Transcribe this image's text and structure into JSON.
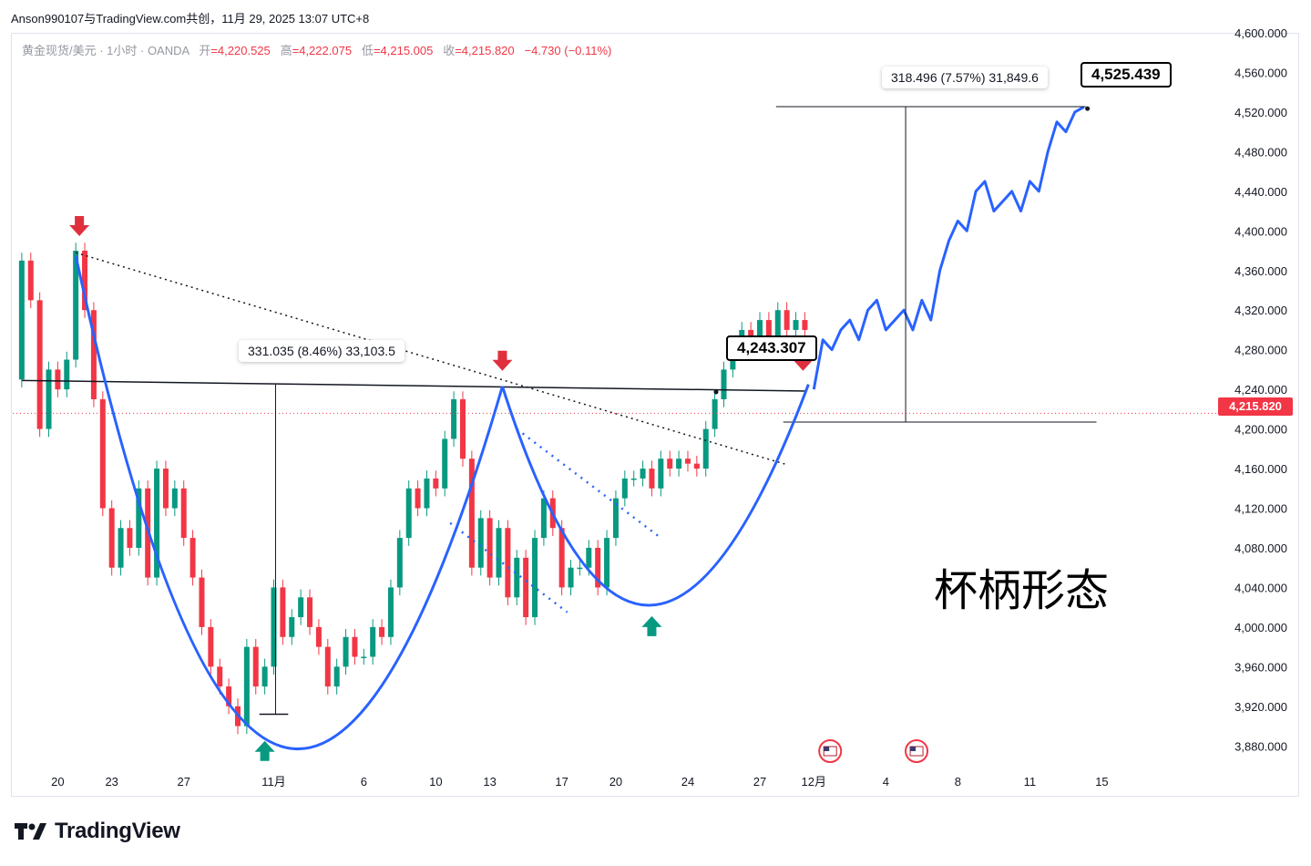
{
  "header": {
    "watermark": "Anson990107与TradingView.com共创，11月 29, 2025 13:07 UTC+8",
    "symbol_line": "黄金现货/美元 · 1小时 · OANDA",
    "open_label": "开",
    "open": "=4,220.525",
    "high_label": "高",
    "high": "=4,222.075",
    "low_label": "低",
    "low": "=4,215.005",
    "close_label": "收",
    "close": "=4,215.820",
    "change": "−4.730 (−0.11%)"
  },
  "annotations": {
    "pattern_label": "杯柄形态",
    "neckline_callout": "4,243.307",
    "target_callout": "4,525.439",
    "cup_measure": "331.035 (8.46%) 33,103.5",
    "target_measure": "318.496 (7.57%) 31,849.6",
    "current_price": "4,215.820"
  },
  "brand": {
    "name": "TradingView"
  },
  "colors": {
    "price_line": "#2962ff",
    "cup_curve": "#2962ff",
    "up_candle": "#089981",
    "down_candle": "#f23645",
    "down_arrow": "#e0303d",
    "up_arrow": "#089981",
    "current_price_tag": "#f23645"
  },
  "chart_data": {
    "type": "line",
    "title": "",
    "xlabel": "",
    "ylabel": "",
    "ylim": [
      3860,
      4600
    ],
    "y_ticks": [
      "4,600.000",
      "4,560.000",
      "4,520.000",
      "4,480.000",
      "4,440.000",
      "4,400.000",
      "4,360.000",
      "4,320.000",
      "4,280.000",
      "4,240.000",
      "4,200.000",
      "4,160.000",
      "4,120.000",
      "4,080.000",
      "4,040.000",
      "4,000.000",
      "3,960.000",
      "3,920.000",
      "3,880.000"
    ],
    "y_tick_values": [
      4600,
      4560,
      4520,
      4480,
      4440,
      4400,
      4360,
      4320,
      4280,
      4240,
      4200,
      4160,
      4120,
      4080,
      4040,
      4000,
      3960,
      3920,
      3880
    ],
    "x_ticks": [
      "20",
      "23",
      "27",
      "11月",
      "6",
      "10",
      "13",
      "17",
      "20",
      "24",
      "27",
      "12月",
      "4",
      "8",
      "11",
      "15"
    ],
    "x_tick_days": [
      0,
      3,
      7,
      12,
      17,
      21,
      24,
      28,
      31,
      35,
      39,
      42,
      46,
      50,
      54,
      58
    ],
    "x_range_days": [
      -2.5,
      64
    ],
    "series": [
      {
        "values_x_days": [
          -2.5,
          -2.0,
          -1.5,
          -1.0,
          -0.5,
          0.0,
          0.5,
          1.0,
          1.5,
          2.0,
          2.5,
          3.0,
          3.5,
          4.0,
          4.5,
          5.0,
          5.5,
          6.0,
          6.5,
          7.0,
          7.5,
          8.0,
          8.5,
          9.0,
          9.5,
          10.0,
          10.5,
          11.0,
          11.5,
          12.0,
          12.5,
          13.0,
          13.5,
          14.0,
          14.5,
          15.0,
          15.5,
          16.0,
          16.5,
          17.0,
          17.5,
          18.0,
          18.5,
          19.0,
          19.5,
          20.0,
          20.5,
          21.0,
          21.5,
          22.0,
          22.5,
          23.0,
          23.5,
          24.0,
          24.5,
          25.0,
          25.5,
          26.0,
          26.5,
          27.0,
          27.5,
          28.0,
          28.5,
          29.0,
          29.5,
          30.0,
          30.5,
          31.0,
          31.5,
          32.0,
          32.5,
          33.0,
          33.5,
          34.0,
          34.5,
          35.0,
          35.5,
          36.0,
          36.5,
          37.0,
          37.5,
          38.0,
          38.5,
          39.0,
          39.5,
          40.0,
          40.5,
          41.0,
          41.5
        ],
        "values_y": [
          4250,
          4370,
          4330,
          4200,
          4260,
          4240,
          4270,
          4380,
          4320,
          4230,
          4120,
          4060,
          4100,
          4080,
          4140,
          4050,
          4160,
          4120,
          4140,
          4090,
          4050,
          4000,
          3960,
          3940,
          3920,
          3900,
          3980,
          3940,
          3960,
          4040,
          3990,
          4010,
          4030,
          4000,
          3980,
          3940,
          3960,
          3990,
          3970,
          3970,
          4000,
          3990,
          4040,
          4090,
          4140,
          4120,
          4150,
          4140,
          4190,
          4230,
          4170,
          4060,
          4110,
          4050,
          4100,
          4030,
          4070,
          4010,
          4090,
          4130,
          4100,
          4040,
          4060,
          4060,
          4080,
          4040,
          4090,
          4130,
          4150,
          4150,
          4160,
          4140,
          4170,
          4160,
          4170,
          4165,
          4160,
          4200,
          4230,
          4260,
          4280,
          4300,
          4280,
          4310,
          4290,
          4320,
          4300,
          4310,
          4300
        ],
        "name": ""
      },
      {
        "values_x_days": [
          42,
          42.5,
          43,
          43.5,
          44,
          44.5,
          45,
          45.5,
          46,
          46.5,
          47,
          47.5,
          48,
          48.5,
          49,
          49.5,
          50,
          50.5,
          51,
          51.5,
          52,
          52.5,
          53,
          53.5,
          54,
          54.5,
          55,
          55.5,
          56,
          56.5,
          57
        ],
        "values_y": [
          4240,
          4290,
          4280,
          4300,
          4310,
          4290,
          4320,
          4330,
          4300,
          4310,
          4320,
          4300,
          4330,
          4310,
          4360,
          4390,
          4410,
          4400,
          4440,
          4450,
          4420,
          4430,
          4440,
          4420,
          4450,
          4440,
          4480,
          4510,
          4500,
          4520,
          4525
        ],
        "name": ""
      }
    ],
    "reference_levels": {
      "neckline": 4243.307,
      "target": 4525.439,
      "cup_bottom": 3912,
      "breakout_base": 4207,
      "current_price": 4215.82
    }
  }
}
